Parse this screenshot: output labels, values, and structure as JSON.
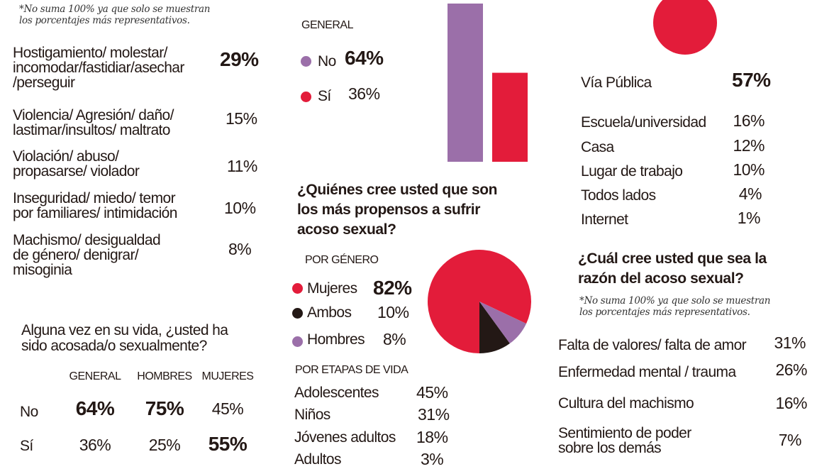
{
  "colors": {
    "purple": "#9b6fa9",
    "red": "#e31c3a",
    "black": "#231815"
  },
  "left": {
    "note": [
      "*No suma 100% ya que solo se muestran",
      "los porcentajes más representativos."
    ],
    "items": [
      {
        "label": [
          "Hostigamiento/ molestar/",
          "incomodar/fastidiar/asechar",
          "/perseguir"
        ],
        "value": "29%"
      },
      {
        "label": [
          "Violencia/ Agresión/ daño/",
          "lastimar/insultos/ maltrato"
        ],
        "value": "15%"
      },
      {
        "label": [
          "Violación/ abuso/",
          "propasarse/ violador"
        ],
        "value": "11%"
      },
      {
        "label": [
          "Inseguridad/ miedo/ temor",
          "por familiares/ intimidación"
        ],
        "value": "10%"
      },
      {
        "label": [
          "Machismo/ desigualdad",
          "de género/ denigrar/",
          "misoginia"
        ],
        "value": "8%"
      }
    ],
    "question": [
      "Alguna vez en su vida, ¿usted ha",
      "sido acosada/o sexualmente?"
    ],
    "table": {
      "headers": [
        "GENERAL",
        "HOMBRES",
        "MUJERES"
      ],
      "rows": [
        {
          "label": "No",
          "values": [
            "64%",
            "75%",
            "45%"
          ]
        },
        {
          "label": "Sí",
          "values": [
            "36%",
            "25%",
            "55%"
          ]
        }
      ]
    }
  },
  "middle": {
    "general_label": "GENERAL",
    "legend": [
      {
        "label": "No",
        "value": "64%"
      },
      {
        "label": "Sí",
        "value": "36%"
      }
    ],
    "question": [
      "¿Quiénes cree usted que son",
      "los más propensos a sufrir",
      "acoso sexual?"
    ],
    "gender_label": "POR GÉNERO",
    "gender_legend": [
      {
        "label": "Mujeres",
        "value": "82%"
      },
      {
        "label": "Ambos",
        "value": "10%"
      },
      {
        "label": "Hombres",
        "value": "8%"
      }
    ],
    "life_label": "POR ETAPAS DE VIDA",
    "life": [
      {
        "label": "Adolescentes",
        "value": "45%"
      },
      {
        "label": "Niños",
        "value": "31%"
      },
      {
        "label": "Jóvenes adultos",
        "value": "18%"
      },
      {
        "label": "Adultos",
        "value": "3%"
      }
    ]
  },
  "right": {
    "top": {
      "label": "Vía Pública",
      "value": "57%"
    },
    "places": [
      {
        "label": "Escuela/universidad",
        "value": "16%"
      },
      {
        "label": "Casa",
        "value": "12%"
      },
      {
        "label": "Lugar de trabajo",
        "value": "10%"
      },
      {
        "label": "Todos lados",
        "value": "4%"
      },
      {
        "label": "Internet",
        "value": "1%"
      }
    ],
    "question": [
      "¿Cuál cree usted que sea la",
      "razón del acoso sexual?"
    ],
    "note": [
      "*No suma 100% ya que solo se muestran",
      "los porcentajes más representativos."
    ],
    "reasons": [
      {
        "label": [
          "Falta de valores/ falta de amor"
        ],
        "value": "31%"
      },
      {
        "label": [
          "Enfermedad mental / trauma"
        ],
        "value": "26%"
      },
      {
        "label": [
          "Cultura del machismo"
        ],
        "value": "16%"
      },
      {
        "label": [
          "Sentimiento de poder",
          "sobre los demás"
        ],
        "value": "7%"
      }
    ]
  },
  "chart_data": [
    {
      "type": "bar",
      "categories": [
        "No",
        "Sí"
      ],
      "values": [
        64,
        36
      ],
      "colors": [
        "#9b6fa9",
        "#e31c3a"
      ],
      "grid": false
    },
    {
      "type": "pie",
      "categories": [
        "Mujeres",
        "Ambos",
        "Hombres"
      ],
      "values": [
        82,
        10,
        8
      ],
      "colors": [
        "#e31c3a",
        "#231815",
        "#9b6fa9"
      ]
    }
  ]
}
